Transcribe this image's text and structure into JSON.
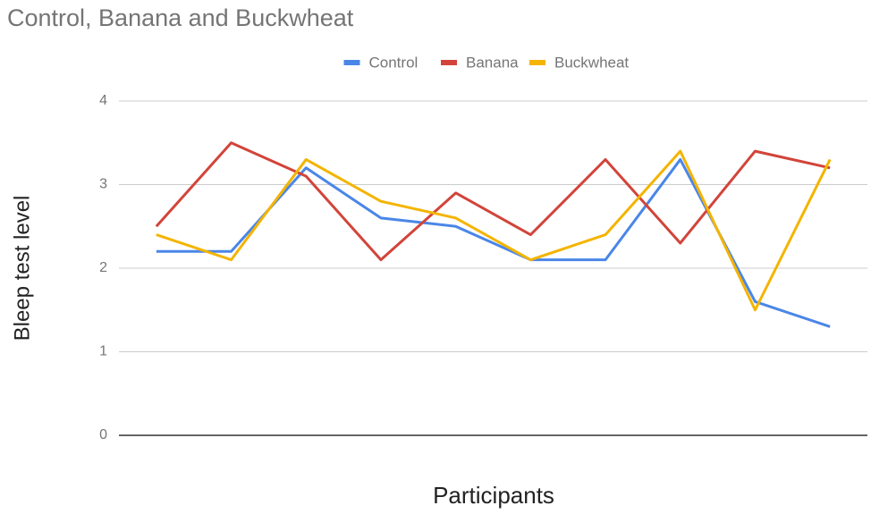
{
  "chart_data": {
    "type": "line",
    "title": "Control, Banana and Buckwheat",
    "x_label": "Participants",
    "y_label": "Bleep test level",
    "categories": [
      null,
      null,
      null,
      null,
      null,
      null,
      null,
      null,
      null,
      null
    ],
    "series": [
      {
        "name": "Control",
        "color": "#4a86e8",
        "values": [
          2.2,
          2.2,
          3.2,
          2.6,
          2.5,
          2.1,
          2.1,
          3.3,
          1.6,
          1.3
        ]
      },
      {
        "name": "Banana",
        "color": "#d2443a",
        "values": [
          2.5,
          3.5,
          3.1,
          2.1,
          2.9,
          2.4,
          3.3,
          2.3,
          3.4,
          3.2
        ]
      },
      {
        "name": "Buckwheat",
        "color": "#f4b400",
        "values": [
          2.4,
          2.1,
          3.3,
          2.8,
          2.6,
          2.1,
          2.4,
          3.4,
          1.5,
          3.3
        ]
      }
    ],
    "ylim": [
      0,
      4
    ],
    "yticks": [
      0,
      1,
      2,
      3,
      4
    ],
    "grid": true,
    "legend": "top"
  }
}
